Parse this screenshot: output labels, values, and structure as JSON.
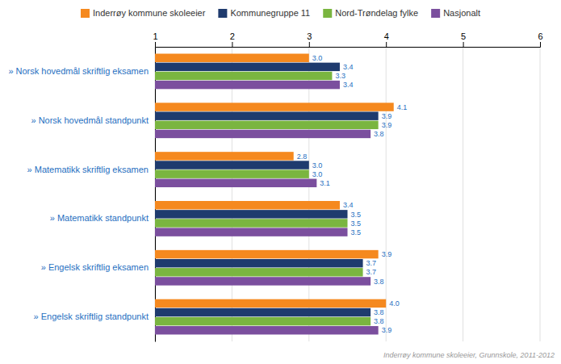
{
  "chart_data": {
    "type": "bar",
    "orientation": "horizontal",
    "categories": [
      "» Norsk hovedmål skriftlig eksamen",
      "» Norsk hovedmål standpunkt",
      "» Matematikk skriftlig eksamen",
      "» Matematikk standpunkt",
      "» Engelsk skriftlig eksamen",
      "» Engelsk skriftlig standpunkt"
    ],
    "series": [
      {
        "name": "Inderrøy kommune skoleeier",
        "color": "#F5891F",
        "values": [
          3.0,
          4.1,
          2.8,
          3.4,
          3.9,
          4.0
        ],
        "value_labels": [
          "3.0",
          "4.1",
          "2.8",
          "3.4",
          "3.9",
          "4.0"
        ]
      },
      {
        "name": "Kommunegruppe 11",
        "color": "#1F3B6E",
        "values": [
          3.4,
          3.9,
          3.0,
          3.5,
          3.7,
          3.8
        ],
        "value_labels": [
          "3.4",
          "3.9",
          "3.0",
          "3.5",
          "3.7",
          "3.8"
        ]
      },
      {
        "name": "Nord-Trøndelag fylke",
        "color": "#7AB540",
        "values": [
          3.3,
          3.9,
          3.0,
          3.5,
          3.7,
          3.8
        ],
        "value_labels": [
          "3.3",
          "3.9",
          "3.0",
          "3.5",
          "3.7",
          "3.8"
        ]
      },
      {
        "name": "Nasjonalt",
        "color": "#7B4F9E",
        "values": [
          3.4,
          3.8,
          3.1,
          3.5,
          3.8,
          3.9
        ],
        "value_labels": [
          "3.4",
          "3.8",
          "3.1",
          "3.5",
          "3.8",
          "3.9"
        ]
      }
    ],
    "xlim": [
      1,
      6
    ],
    "xticks": [
      1,
      2,
      3,
      4,
      5,
      6
    ],
    "grid": true,
    "legend": "top",
    "data_labels": true,
    "annotations": [
      "Inderrøy kommune skoleeier, Grunnskole, 2011-2012"
    ]
  }
}
